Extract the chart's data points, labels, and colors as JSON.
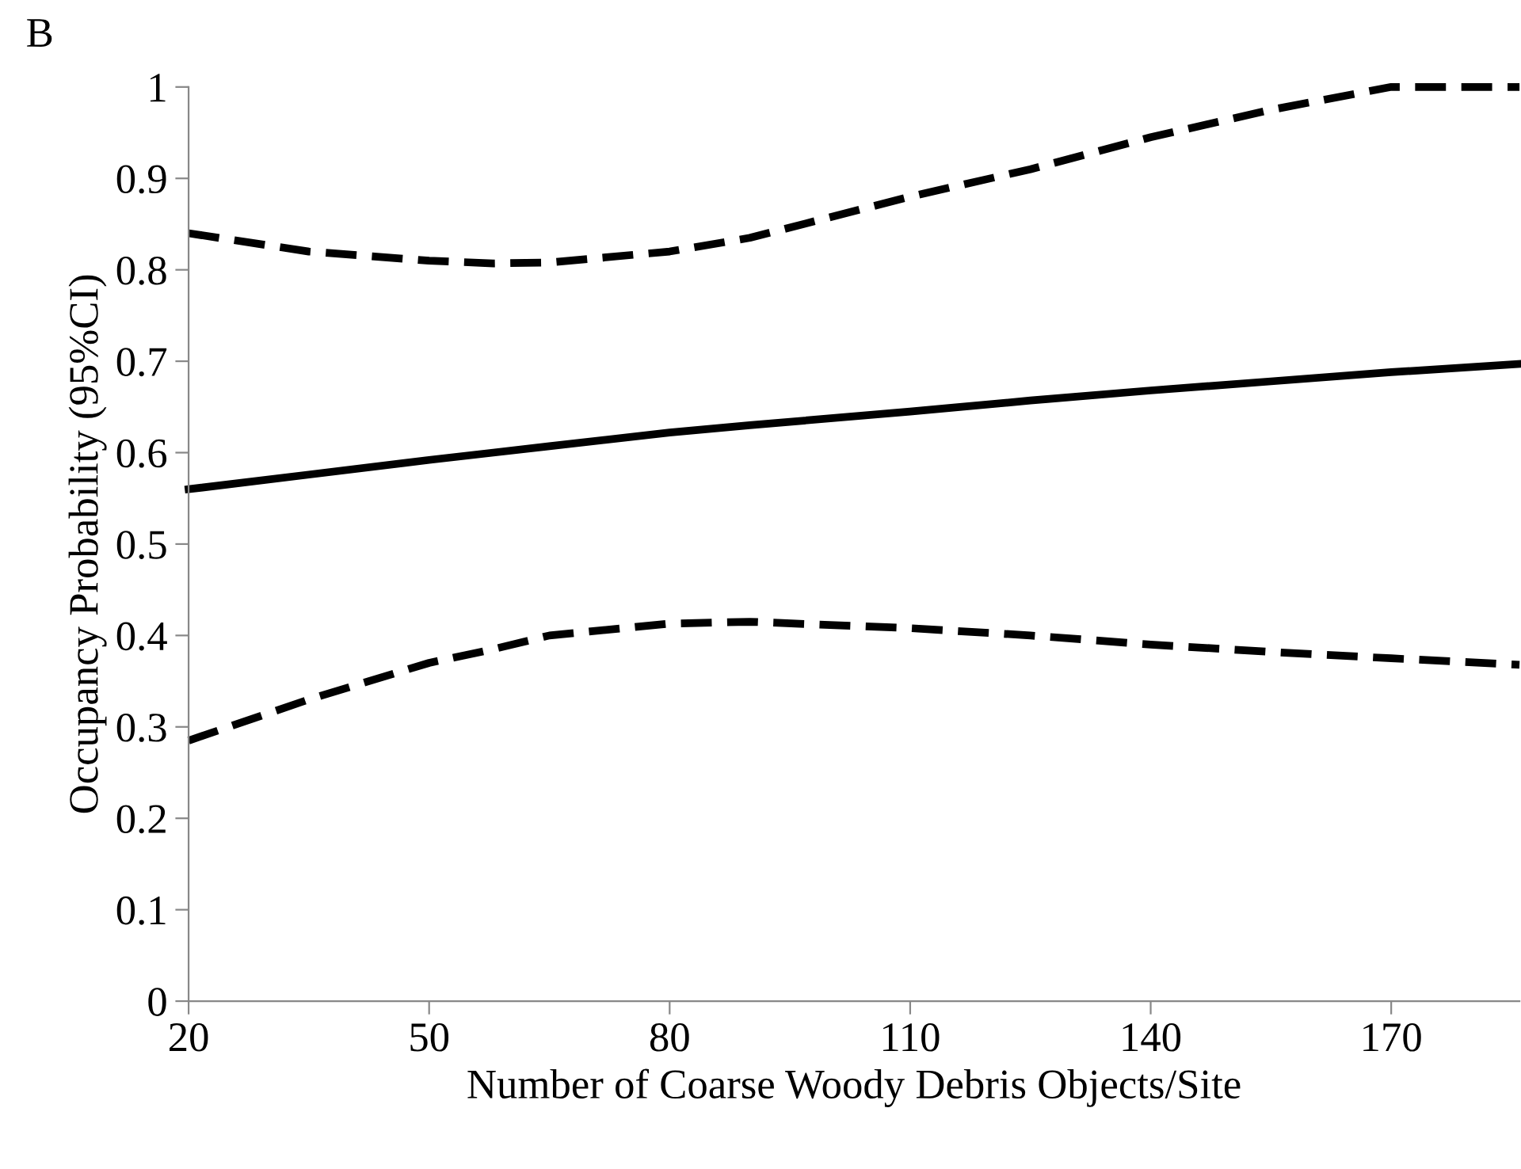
{
  "chart_data": {
    "type": "line",
    "title": "B",
    "xlabel": "Number of Coarse Woody Debris Objects/Site",
    "ylabel": "Occupancy Probability (95%CI)",
    "x": [
      20,
      35,
      50,
      58,
      65,
      80,
      90,
      110,
      125,
      140,
      155,
      170,
      186
    ],
    "series": [
      {
        "color": "#000000",
        "line_style": "solid",
        "values": [
          0.56,
          0.576,
          0.592,
          0.6,
          0.607,
          0.622,
          0.63,
          0.645,
          0.657,
          0.668,
          0.678,
          0.688,
          0.697
        ]
      },
      {
        "color": "#000000",
        "line_style": "dashed",
        "values": [
          0.84,
          0.82,
          0.81,
          0.807,
          0.808,
          0.82,
          0.835,
          0.88,
          0.91,
          0.945,
          0.975,
          1.0,
          1.0
        ]
      },
      {
        "color": "#000000",
        "line_style": "dashed",
        "values": [
          0.285,
          0.33,
          0.37,
          0.385,
          0.4,
          0.413,
          0.415,
          0.408,
          0.4,
          0.39,
          0.382,
          0.375,
          0.368
        ]
      }
    ],
    "xlim": [
      20,
      186
    ],
    "xticks": [
      20,
      50,
      80,
      110,
      140,
      170
    ],
    "ylim": [
      0,
      1
    ],
    "yticks": [
      0,
      0.1,
      0.2,
      0.3,
      0.4,
      0.5,
      0.6,
      0.7,
      0.8,
      0.9,
      1
    ],
    "grid": false,
    "legend": false,
    "marker": "none"
  }
}
